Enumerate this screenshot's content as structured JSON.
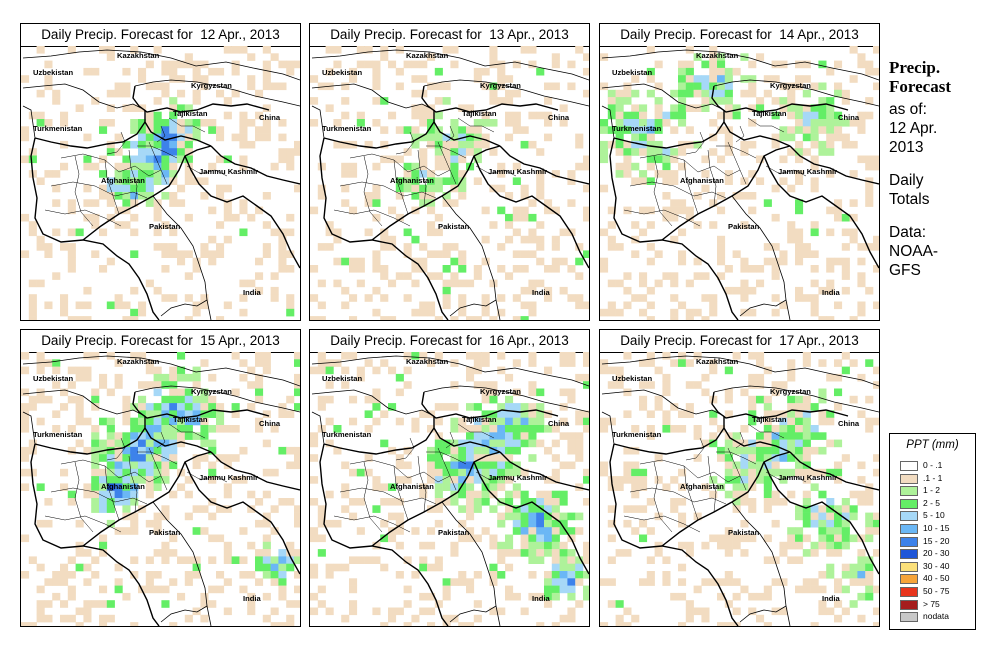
{
  "panels": [
    {
      "title": "Daily Precip. Forecast for  12 Apr., 2013",
      "intensity": 1.0,
      "bias": "center"
    },
    {
      "title": "Daily Precip. Forecast for  13 Apr., 2013",
      "intensity": 0.55,
      "bias": "center"
    },
    {
      "title": "Daily Precip. Forecast for  14 Apr., 2013",
      "intensity": 0.8,
      "bias": "northwest"
    },
    {
      "title": "Daily Precip. Forecast for  15 Apr., 2013",
      "intensity": 1.2,
      "bias": "north"
    },
    {
      "title": "Daily Precip. Forecast for  16 Apr., 2013",
      "intensity": 1.1,
      "bias": "east"
    },
    {
      "title": "Daily Precip. Forecast for  17 Apr., 2013",
      "intensity": 0.9,
      "bias": "east"
    }
  ],
  "map_labels": [
    {
      "text": "Kazakhstan"
    },
    {
      "text": "Uzbekistan"
    },
    {
      "text": "Kyrgyzstan"
    },
    {
      "text": "Tajikistan"
    },
    {
      "text": "China"
    },
    {
      "text": "Turkmenistan"
    },
    {
      "text": "Jammu Kashmir"
    },
    {
      "text": "Afghanistan"
    },
    {
      "text": "Pakistan"
    },
    {
      "text": "India"
    }
  ],
  "side_info": {
    "heading_line1": "Precip.",
    "heading_line2": "Forecast",
    "as_of_label": "as of:",
    "as_of_date_line1": "12 Apr.",
    "as_of_date_line2": "2013",
    "totals_line1": "Daily",
    "totals_line2": "Totals",
    "data_label": "Data:",
    "data_source_line1": "NOAA-",
    "data_source_line2": "GFS"
  },
  "legend": {
    "title": "PPT (mm)",
    "entries": [
      {
        "label": "0 - .1",
        "color": "#ffffff"
      },
      {
        "label": ".1 - 1",
        "color": "#f2dcc1"
      },
      {
        "label": "1 - 2",
        "color": "#aef29a"
      },
      {
        "label": "2 - 5",
        "color": "#64ee66"
      },
      {
        "label": "5 - 10",
        "color": "#a6d8f7"
      },
      {
        "label": "10 - 15",
        "color": "#6bb7f5"
      },
      {
        "label": "15 - 20",
        "color": "#3d82ea"
      },
      {
        "label": "20 - 30",
        "color": "#1f56d8"
      },
      {
        "label": "30 - 40",
        "color": "#fbe07a"
      },
      {
        "label": "40 - 50",
        "color": "#f6a43a"
      },
      {
        "label": "50 - 75",
        "color": "#e8341c"
      },
      {
        "label": "> 75",
        "color": "#a51d1d"
      },
      {
        "label": "nodata",
        "color": "#c8c8c8"
      }
    ]
  }
}
